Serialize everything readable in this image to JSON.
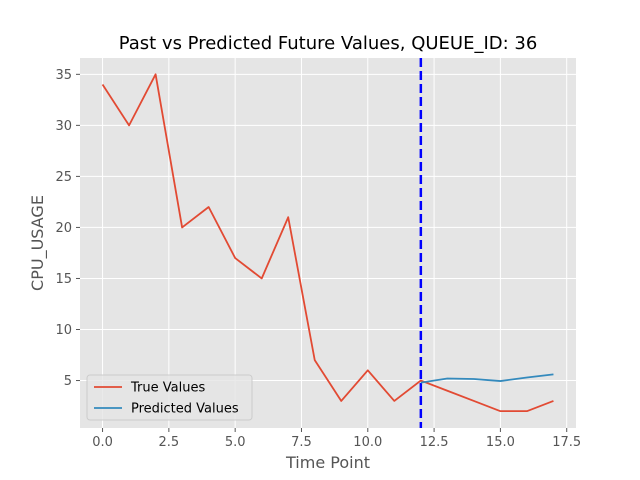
{
  "chart_data": {
    "type": "line",
    "title": "Past vs Predicted Future Values, QUEUE_ID: 36",
    "xlabel": "Time Point",
    "ylabel": "CPU_USAGE",
    "xlim": [
      -0.85,
      17.85
    ],
    "ylim": [
      0.35,
      36.6
    ],
    "xticks": [
      0.0,
      2.5,
      5.0,
      7.5,
      10.0,
      12.5,
      15.0,
      17.5
    ],
    "xtick_labels": [
      "0.0",
      "2.5",
      "5.0",
      "7.5",
      "10.0",
      "12.5",
      "15.0",
      "17.5"
    ],
    "yticks": [
      5,
      10,
      15,
      20,
      25,
      30,
      35
    ],
    "ytick_labels": [
      "5",
      "10",
      "15",
      "20",
      "25",
      "30",
      "35"
    ],
    "grid": true,
    "legend_position": "lower-left",
    "series": [
      {
        "name": "True Values",
        "color": "#E24A33",
        "x": [
          0,
          1,
          2,
          3,
          4,
          5,
          6,
          7,
          8,
          9,
          10,
          11,
          12,
          13,
          14,
          15,
          16,
          17
        ],
        "values": [
          34,
          30,
          35,
          20,
          22,
          17,
          15,
          21,
          7,
          3,
          6,
          3,
          5,
          4,
          3,
          2,
          2,
          3
        ]
      },
      {
        "name": "Predicted Values",
        "color": "#348ABD",
        "x": [
          12,
          13,
          14,
          15,
          16,
          17
        ],
        "values": [
          4.8,
          5.2,
          5.15,
          4.95,
          5.3,
          5.6
        ]
      }
    ],
    "vline": {
      "x": 12,
      "color": "#0000FF",
      "style": "dashed"
    },
    "background_color": "#E5E5E5",
    "grid_color": "#FFFFFF"
  }
}
